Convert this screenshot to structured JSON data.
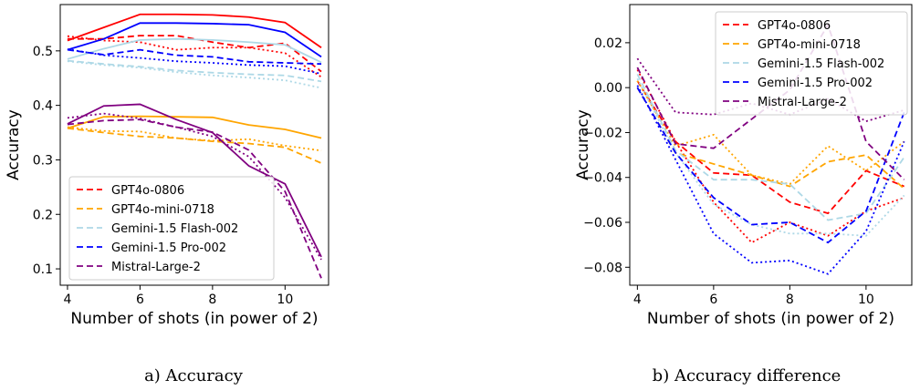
{
  "chart_data": [
    {
      "type": "line",
      "xlabel": "Number of shots (in power of 2)",
      "ylabel": "Accuracy",
      "xlim": [
        3.8,
        11.2
      ],
      "ylim": [
        0.07,
        0.585
      ],
      "xticks": [
        4,
        6,
        8,
        10
      ],
      "yticks": [
        0.1,
        0.2,
        0.3,
        0.4,
        0.5
      ],
      "grid": false,
      "legend_position": "lower-left",
      "x": [
        4,
        5,
        6,
        7,
        8,
        9,
        10,
        11
      ],
      "series": [
        {
          "name": "GPT4o-0806",
          "color": "#ff0000",
          "style": "dashed",
          "values": [
            0.522,
            0.522,
            0.528,
            0.528,
            0.516,
            0.506,
            0.514,
            0.462
          ]
        },
        {
          "name": "",
          "color": "#ff0000",
          "style": "solid",
          "values": [
            0.519,
            0.543,
            0.567,
            0.567,
            0.566,
            0.562,
            0.552,
            0.506
          ]
        },
        {
          "name": "",
          "color": "#ff0000",
          "style": "dotted",
          "values": [
            0.527,
            0.519,
            0.516,
            0.502,
            0.506,
            0.506,
            0.496,
            0.452
          ]
        },
        {
          "name": "GPT4o-mini-0718",
          "color": "#ffa500",
          "style": "dashed",
          "values": [
            0.358,
            0.35,
            0.343,
            0.34,
            0.334,
            0.33,
            0.323,
            0.294
          ]
        },
        {
          "name": "",
          "color": "#ffa500",
          "style": "solid",
          "values": [
            0.358,
            0.379,
            0.38,
            0.379,
            0.378,
            0.364,
            0.356,
            0.34
          ]
        },
        {
          "name": "",
          "color": "#ffa500",
          "style": "dotted",
          "values": [
            0.36,
            0.353,
            0.352,
            0.34,
            0.335,
            0.338,
            0.326,
            0.317
          ]
        },
        {
          "name": "Gemini-1.5 Flash-002",
          "color": "#add8e6",
          "style": "dashed",
          "values": [
            0.482,
            0.476,
            0.471,
            0.464,
            0.46,
            0.457,
            0.455,
            0.444
          ]
        },
        {
          "name": "",
          "color": "#add8e6",
          "style": "solid",
          "values": [
            0.485,
            0.504,
            0.52,
            0.522,
            0.52,
            0.516,
            0.511,
            0.479
          ]
        },
        {
          "name": "",
          "color": "#add8e6",
          "style": "dotted",
          "values": [
            0.481,
            0.474,
            0.469,
            0.461,
            0.455,
            0.451,
            0.446,
            0.432
          ]
        },
        {
          "name": "Gemini-1.5 Pro-002",
          "color": "#0000ff",
          "style": "dashed",
          "values": [
            0.502,
            0.493,
            0.502,
            0.492,
            0.489,
            0.48,
            0.478,
            0.476
          ]
        },
        {
          "name": "",
          "color": "#0000ff",
          "style": "solid",
          "values": [
            0.502,
            0.522,
            0.551,
            0.551,
            0.55,
            0.548,
            0.534,
            0.489
          ]
        },
        {
          "name": "",
          "color": "#0000ff",
          "style": "dotted",
          "values": [
            0.503,
            0.492,
            0.487,
            0.481,
            0.478,
            0.474,
            0.472,
            0.458
          ]
        },
        {
          "name": "Mistral-Large-2",
          "color": "#800080",
          "style": "dashed",
          "values": [
            0.365,
            0.372,
            0.374,
            0.36,
            0.351,
            0.318,
            0.242,
            0.083
          ]
        },
        {
          "name": "",
          "color": "#800080",
          "style": "solid",
          "values": [
            0.366,
            0.399,
            0.402,
            0.374,
            0.35,
            0.289,
            0.256,
            0.122
          ]
        },
        {
          "name": "",
          "color": "#800080",
          "style": "dotted",
          "values": [
            0.377,
            0.385,
            0.376,
            0.36,
            0.343,
            0.306,
            0.231,
            0.117
          ]
        }
      ]
    },
    {
      "type": "line",
      "xlabel": "Number of shots (in power of 2)",
      "ylabel": "Accuracy",
      "xlim": [
        3.8,
        11.2
      ],
      "ylim": [
        -0.088,
        0.037
      ],
      "xticks": [
        4,
        6,
        8,
        10
      ],
      "yticks": [
        -0.08,
        -0.06,
        -0.04,
        -0.02,
        0.0,
        0.02
      ],
      "ytick_labels": [
        "−0.08",
        "−0.06",
        "−0.04",
        "−0.02",
        "0.00",
        "0.02"
      ],
      "grid": false,
      "legend_position": "top-right",
      "x": [
        4,
        5,
        6,
        7,
        8,
        9,
        10,
        11
      ],
      "series": [
        {
          "name": "GPT4o-0806",
          "color": "#ff0000",
          "style": "dashed",
          "values": [
            0.003,
            -0.024,
            -0.038,
            -0.039,
            -0.051,
            -0.056,
            -0.037,
            -0.044
          ]
        },
        {
          "name": "",
          "color": "#ff0000",
          "style": "dotted",
          "values": [
            0.008,
            -0.024,
            -0.051,
            -0.069,
            -0.06,
            -0.066,
            -0.055,
            -0.049
          ]
        },
        {
          "name": "GPT4o-mini-0718",
          "color": "#ffa500",
          "style": "dashed",
          "values": [
            0.0,
            -0.029,
            -0.034,
            -0.039,
            -0.044,
            -0.033,
            -0.03,
            -0.045
          ]
        },
        {
          "name": "",
          "color": "#ffa500",
          "style": "dotted",
          "values": [
            0.003,
            -0.026,
            -0.021,
            -0.039,
            -0.043,
            -0.026,
            -0.037,
            -0.024
          ]
        },
        {
          "name": "Gemini-1.5 Flash-002",
          "color": "#add8e6",
          "style": "dashed",
          "values": [
            0.006,
            -0.028,
            -0.041,
            -0.041,
            -0.043,
            -0.059,
            -0.056,
            -0.031
          ]
        },
        {
          "name": "",
          "color": "#add8e6",
          "style": "dotted",
          "values": [
            0.004,
            -0.029,
            -0.052,
            -0.061,
            -0.065,
            -0.065,
            -0.066,
            -0.048
          ]
        },
        {
          "name": "Gemini-1.5 Pro-002",
          "color": "#0000ff",
          "style": "dashed",
          "values": [
            0.0,
            -0.029,
            -0.049,
            -0.061,
            -0.06,
            -0.069,
            -0.055,
            -0.011
          ]
        },
        {
          "name": "",
          "color": "#0000ff",
          "style": "dotted",
          "values": [
            0.001,
            -0.032,
            -0.065,
            -0.078,
            -0.077,
            -0.083,
            -0.064,
            -0.024
          ]
        },
        {
          "name": "Mistral-Large-2",
          "color": "#800080",
          "style": "dashed",
          "values": [
            0.009,
            -0.025,
            -0.027,
            -0.014,
            -0.001,
            0.028,
            -0.024,
            -0.041
          ]
        },
        {
          "name": "",
          "color": "#800080",
          "style": "dotted",
          "values": [
            0.013,
            -0.011,
            -0.012,
            -0.007,
            -0.012,
            -0.005,
            -0.015,
            -0.01
          ]
        }
      ]
    }
  ],
  "captions": {
    "left": "a) Accuracy",
    "right": "b) Accuracy difference"
  }
}
